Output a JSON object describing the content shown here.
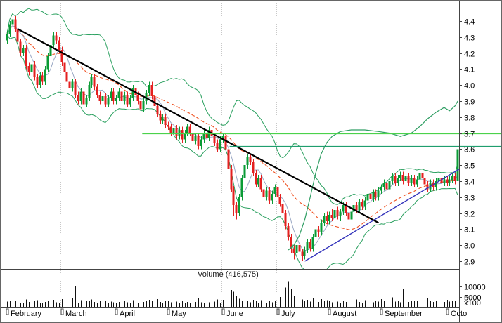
{
  "chart_data": {
    "type": "candlestick",
    "title": "",
    "volume_title": "Volume (416,575)",
    "colors": {
      "up": "#0a9b35",
      "down": "#e42020",
      "volume": "#111111",
      "grid": "#c8c8c8",
      "frame": "#666666",
      "axis": "#444444",
      "axis_text": "#000000"
    },
    "y_axis": {
      "side": "right",
      "min": 2.9,
      "max": 4.4,
      "step": 0.1,
      "tick_labels": [
        "4.4",
        "4.3",
        "4.2",
        "4.1",
        "4.0",
        "3.9",
        "3.8",
        "3.7",
        "3.6",
        "3.5",
        "3.4",
        "3.3",
        "3.2",
        "3.1",
        "3.0",
        "2.9"
      ]
    },
    "volume_axis": {
      "ticks": [
        {
          "label": "10000",
          "value": 10000
        },
        {
          "label": "5000",
          "value": 5000
        }
      ],
      "unit_label": "x100"
    },
    "x_axis": {
      "months": [
        {
          "label": "February",
          "start_index": 0
        },
        {
          "label": "March",
          "start_index": 20
        },
        {
          "label": "April",
          "start_index": 40
        },
        {
          "label": "May",
          "start_index": 59
        },
        {
          "label": "June",
          "start_index": 79
        },
        {
          "label": "July",
          "start_index": 99
        },
        {
          "label": "August",
          "start_index": 118
        },
        {
          "label": "September",
          "start_index": 137
        },
        {
          "label": "Octo",
          "start_index": 161
        }
      ]
    },
    "candles": [
      [
        4.28,
        4.34,
        4.26,
        4.32
      ],
      [
        4.32,
        4.4,
        4.3,
        4.38
      ],
      [
        4.38,
        4.43,
        4.36,
        4.41
      ],
      [
        4.41,
        4.43,
        4.33,
        4.35
      ],
      [
        4.35,
        4.37,
        4.25,
        4.27
      ],
      [
        4.27,
        4.29,
        4.18,
        4.2
      ],
      [
        4.2,
        4.25,
        4.18,
        4.23
      ],
      [
        4.23,
        4.25,
        4.1,
        4.12
      ],
      [
        4.12,
        4.14,
        4.06,
        4.08
      ],
      [
        4.08,
        4.15,
        4.06,
        4.13
      ],
      [
        4.13,
        4.15,
        4.03,
        4.05
      ],
      [
        4.05,
        4.07,
        3.98,
        4.0
      ],
      [
        4.0,
        4.08,
        3.98,
        4.06
      ],
      [
        4.06,
        4.08,
        4.0,
        4.02
      ],
      [
        4.02,
        4.12,
        4.0,
        4.1
      ],
      [
        4.1,
        4.2,
        4.08,
        4.18
      ],
      [
        4.18,
        4.27,
        4.16,
        4.25
      ],
      [
        4.25,
        4.33,
        4.23,
        4.31
      ],
      [
        4.31,
        4.33,
        4.26,
        4.28
      ],
      [
        4.28,
        4.3,
        4.2,
        4.22
      ],
      [
        4.22,
        4.24,
        4.12,
        4.14
      ],
      [
        4.14,
        4.16,
        4.06,
        4.08
      ],
      [
        4.08,
        4.1,
        4.0,
        4.02
      ],
      [
        4.02,
        4.04,
        3.96,
        3.98
      ],
      [
        3.98,
        4.04,
        3.96,
        4.02
      ],
      [
        4.02,
        4.04,
        3.92,
        3.94
      ],
      [
        3.94,
        3.96,
        3.88,
        3.9
      ],
      [
        3.9,
        3.98,
        3.88,
        3.96
      ],
      [
        3.96,
        3.98,
        3.86,
        3.88
      ],
      [
        3.88,
        3.94,
        3.86,
        3.92
      ],
      [
        3.92,
        4.02,
        3.9,
        4.0
      ],
      [
        4.0,
        4.07,
        3.98,
        4.05
      ],
      [
        4.05,
        4.07,
        3.97,
        3.99
      ],
      [
        3.99,
        4.01,
        3.92,
        3.94
      ],
      [
        3.94,
        3.96,
        3.88,
        3.9
      ],
      [
        3.9,
        3.95,
        3.88,
        3.93
      ],
      [
        3.93,
        3.95,
        3.86,
        3.88
      ],
      [
        3.88,
        3.94,
        3.86,
        3.92
      ],
      [
        3.92,
        3.98,
        3.9,
        3.96
      ],
      [
        3.96,
        3.98,
        3.88,
        3.9
      ],
      [
        3.9,
        3.94,
        3.88,
        3.92
      ],
      [
        3.92,
        3.98,
        3.9,
        3.96
      ],
      [
        3.96,
        3.98,
        3.88,
        3.9
      ],
      [
        3.9,
        3.96,
        3.88,
        3.94
      ],
      [
        3.94,
        3.96,
        3.86,
        3.88
      ],
      [
        3.88,
        3.94,
        3.86,
        3.92
      ],
      [
        3.92,
        4.0,
        3.9,
        3.98
      ],
      [
        3.98,
        4.0,
        3.92,
        3.94
      ],
      [
        3.94,
        3.96,
        3.88,
        3.9
      ],
      [
        3.9,
        3.92,
        3.83,
        3.85
      ],
      [
        3.85,
        3.92,
        3.83,
        3.9
      ],
      [
        3.9,
        3.97,
        3.88,
        3.95
      ],
      [
        3.95,
        4.02,
        3.93,
        4.0
      ],
      [
        4.0,
        4.02,
        3.91,
        3.93
      ],
      [
        3.93,
        3.95,
        3.85,
        3.87
      ],
      [
        3.87,
        3.89,
        3.8,
        3.82
      ],
      [
        3.82,
        3.84,
        3.76,
        3.78
      ],
      [
        3.78,
        3.82,
        3.76,
        3.8
      ],
      [
        3.8,
        3.82,
        3.73,
        3.75
      ],
      [
        3.75,
        3.77,
        3.72,
        3.74
      ],
      [
        3.74,
        3.76,
        3.68,
        3.7
      ],
      [
        3.7,
        3.75,
        3.68,
        3.73
      ],
      [
        3.73,
        3.75,
        3.66,
        3.68
      ],
      [
        3.68,
        3.74,
        3.66,
        3.72
      ],
      [
        3.72,
        3.74,
        3.64,
        3.66
      ],
      [
        3.66,
        3.72,
        3.64,
        3.7
      ],
      [
        3.7,
        3.76,
        3.68,
        3.74
      ],
      [
        3.74,
        3.76,
        3.68,
        3.7
      ],
      [
        3.7,
        3.72,
        3.63,
        3.65
      ],
      [
        3.65,
        3.7,
        3.63,
        3.68
      ],
      [
        3.68,
        3.7,
        3.6,
        3.62
      ],
      [
        3.62,
        3.68,
        3.6,
        3.66
      ],
      [
        3.66,
        3.72,
        3.64,
        3.7
      ],
      [
        3.7,
        3.72,
        3.65,
        3.67
      ],
      [
        3.67,
        3.74,
        3.65,
        3.72
      ],
      [
        3.72,
        3.74,
        3.66,
        3.68
      ],
      [
        3.68,
        3.7,
        3.62,
        3.64
      ],
      [
        3.64,
        3.66,
        3.58,
        3.6
      ],
      [
        3.6,
        3.68,
        3.58,
        3.66
      ],
      [
        3.66,
        3.7,
        3.64,
        3.68
      ],
      [
        3.68,
        3.7,
        3.58,
        3.6
      ],
      [
        3.6,
        3.62,
        3.46,
        3.48
      ],
      [
        3.48,
        3.5,
        3.33,
        3.35
      ],
      [
        3.35,
        3.37,
        3.18,
        3.25
      ],
      [
        3.25,
        3.27,
        3.16,
        3.2
      ],
      [
        3.2,
        3.32,
        3.18,
        3.3
      ],
      [
        3.3,
        3.44,
        3.28,
        3.42
      ],
      [
        3.42,
        3.52,
        3.4,
        3.5
      ],
      [
        3.5,
        3.57,
        3.48,
        3.55
      ],
      [
        3.55,
        3.57,
        3.5,
        3.52
      ],
      [
        3.52,
        3.54,
        3.43,
        3.45
      ],
      [
        3.45,
        3.47,
        3.36,
        3.38
      ],
      [
        3.38,
        3.44,
        3.36,
        3.42
      ],
      [
        3.42,
        3.44,
        3.33,
        3.35
      ],
      [
        3.35,
        3.37,
        3.28,
        3.3
      ],
      [
        3.3,
        3.36,
        3.28,
        3.34
      ],
      [
        3.34,
        3.36,
        3.26,
        3.28
      ],
      [
        3.28,
        3.34,
        3.26,
        3.32
      ],
      [
        3.32,
        3.38,
        3.3,
        3.36
      ],
      [
        3.36,
        3.38,
        3.28,
        3.3
      ],
      [
        3.3,
        3.32,
        3.24,
        3.26
      ],
      [
        3.26,
        3.28,
        3.18,
        3.2
      ],
      [
        3.2,
        3.22,
        3.1,
        3.12
      ],
      [
        3.12,
        3.14,
        3.03,
        3.05
      ],
      [
        3.05,
        3.07,
        2.95,
        2.98
      ],
      [
        2.98,
        3.0,
        2.91,
        2.95
      ],
      [
        2.95,
        3.02,
        2.93,
        3.0
      ],
      [
        3.0,
        3.02,
        2.93,
        2.96
      ],
      [
        2.96,
        2.98,
        2.9,
        2.93
      ],
      [
        2.93,
        2.99,
        2.91,
        2.97
      ],
      [
        2.97,
        3.04,
        2.95,
        3.02
      ],
      [
        3.02,
        3.04,
        2.96,
        2.98
      ],
      [
        2.98,
        3.07,
        2.96,
        3.05
      ],
      [
        3.05,
        3.12,
        3.03,
        3.1
      ],
      [
        3.1,
        3.12,
        3.05,
        3.08
      ],
      [
        3.08,
        3.16,
        3.06,
        3.14
      ],
      [
        3.14,
        3.2,
        3.12,
        3.18
      ],
      [
        3.18,
        3.21,
        3.13,
        3.15
      ],
      [
        3.15,
        3.21,
        3.13,
        3.19
      ],
      [
        3.19,
        3.23,
        3.15,
        3.17
      ],
      [
        3.17,
        3.24,
        3.15,
        3.22
      ],
      [
        3.22,
        3.24,
        3.16,
        3.18
      ],
      [
        3.18,
        3.23,
        3.15,
        3.21
      ],
      [
        3.21,
        3.27,
        3.19,
        3.25
      ],
      [
        3.25,
        3.27,
        3.18,
        3.2
      ],
      [
        3.2,
        3.22,
        3.14,
        3.16
      ],
      [
        3.16,
        3.23,
        3.14,
        3.21
      ],
      [
        3.21,
        3.27,
        3.19,
        3.25
      ],
      [
        3.25,
        3.27,
        3.2,
        3.22
      ],
      [
        3.22,
        3.29,
        3.2,
        3.27
      ],
      [
        3.27,
        3.29,
        3.22,
        3.24
      ],
      [
        3.24,
        3.3,
        3.22,
        3.28
      ],
      [
        3.28,
        3.34,
        3.26,
        3.32
      ],
      [
        3.32,
        3.34,
        3.27,
        3.29
      ],
      [
        3.29,
        3.35,
        3.27,
        3.33
      ],
      [
        3.33,
        3.35,
        3.28,
        3.3
      ],
      [
        3.3,
        3.36,
        3.28,
        3.34
      ],
      [
        3.34,
        3.38,
        3.32,
        3.36
      ],
      [
        3.36,
        3.41,
        3.34,
        3.39
      ],
      [
        3.39,
        3.41,
        3.33,
        3.35
      ],
      [
        3.35,
        3.42,
        3.33,
        3.4
      ],
      [
        3.4,
        3.45,
        3.38,
        3.43
      ],
      [
        3.43,
        3.45,
        3.37,
        3.39
      ],
      [
        3.39,
        3.44,
        3.37,
        3.42
      ],
      [
        3.42,
        3.46,
        3.4,
        3.44
      ],
      [
        3.44,
        3.46,
        3.38,
        3.4
      ],
      [
        3.4,
        3.45,
        3.38,
        3.43
      ],
      [
        3.43,
        3.45,
        3.37,
        3.39
      ],
      [
        3.39,
        3.44,
        3.37,
        3.42
      ],
      [
        3.42,
        3.44,
        3.36,
        3.38
      ],
      [
        3.38,
        3.43,
        3.36,
        3.41
      ],
      [
        3.41,
        3.47,
        3.39,
        3.45
      ],
      [
        3.45,
        3.47,
        3.4,
        3.42
      ],
      [
        3.42,
        3.44,
        3.36,
        3.38
      ],
      [
        3.38,
        3.4,
        3.33,
        3.35
      ],
      [
        3.35,
        3.41,
        3.33,
        3.39
      ],
      [
        3.39,
        3.41,
        3.34,
        3.36
      ],
      [
        3.36,
        3.42,
        3.34,
        3.4
      ],
      [
        3.4,
        3.44,
        3.38,
        3.42
      ],
      [
        3.42,
        3.44,
        3.37,
        3.39
      ],
      [
        3.39,
        3.43,
        3.37,
        3.41
      ],
      [
        3.41,
        3.43,
        3.37,
        3.39
      ],
      [
        3.39,
        3.43,
        3.37,
        3.41
      ],
      [
        3.41,
        3.45,
        3.39,
        3.43
      ],
      [
        3.43,
        3.45,
        3.38,
        3.4
      ],
      [
        3.4,
        3.62,
        3.38,
        3.6
      ]
    ],
    "volumes": [
      2600,
      3100,
      5200,
      2800,
      2300,
      1900,
      2100,
      3600,
      2400,
      1800,
      2900,
      3300,
      2000,
      1700,
      2500,
      3000,
      2700,
      3400,
      2200,
      1900,
      3800,
      2600,
      3100,
      2200,
      4400,
      10400,
      1900,
      3300,
      2100,
      2800,
      2700,
      3600,
      2400,
      1900,
      2900,
      2300,
      3100,
      1800,
      2600,
      2200,
      2100,
      2500,
      1900,
      2800,
      2300,
      1700,
      3200,
      2600,
      2000,
      4800,
      2400,
      2900,
      3500,
      2700,
      2100,
      3800,
      2500,
      1900,
      3000,
      3000,
      2300,
      1800,
      2600,
      2100,
      2900,
      1700,
      2400,
      2000,
      3300,
      2500,
      4100,
      2200,
      1800,
      2700,
      2300,
      3100,
      2600,
      3600,
      2100,
      3400,
      4200,
      6800,
      8200,
      7400,
      5600,
      3900,
      3100,
      4600,
      2800,
      2300,
      3500,
      2700,
      2100,
      3200,
      2600,
      1900,
      2800,
      2300,
      3000,
      3600,
      4800,
      7200,
      9400,
      12600,
      8800,
      5400,
      4100,
      6200,
      3700,
      2900,
      3400,
      2600,
      4400,
      3100,
      2500,
      3800,
      2700,
      3300,
      2800,
      2200,
      3400,
      2600,
      1900,
      3100,
      2500,
      7400,
      2300,
      2900,
      3700,
      2400,
      2000,
      3200,
      2700,
      4600,
      2300,
      3000,
      2600,
      3800,
      2900,
      2400,
      3300,
      4700,
      2600,
      3100,
      2200,
      9000,
      3600,
      2400,
      3000,
      2800,
      2700,
      2300,
      3500,
      2600,
      4100,
      2900,
      2400,
      3100,
      2700,
      6300,
      2500,
      3500,
      2600,
      2900,
      3100,
      4166
    ],
    "overlays": {
      "sma_fast": {
        "period": 6,
        "color": "#9aa8c4"
      },
      "sma_slow": {
        "period": 25,
        "color": "#ef4e1d",
        "dashed": true
      },
      "bollinger": {
        "period": 20,
        "mult": 2,
        "color": "#2aa05f"
      }
    },
    "trendlines": [
      {
        "name": "downtrend",
        "color": "#000000",
        "width": 2.2,
        "from": {
          "i": 4,
          "p": 4.35
        },
        "to": {
          "i": 136,
          "p": 3.14
        }
      },
      {
        "name": "uptrend",
        "color": "#3333bb",
        "width": 1.4,
        "from": {
          "i": 109,
          "p": 2.9
        },
        "to": {
          "i": 166,
          "p": 3.48
        }
      }
    ],
    "levels": [
      {
        "name": "resistance-upper",
        "price": 3.7,
        "from_index": 50,
        "color": "#4bd24b"
      },
      {
        "name": "resistance-lower",
        "price": 3.62,
        "from_index": 82,
        "color": "#1f9e6e"
      }
    ],
    "aux_curve": {
      "name": "recovery-trend-curve",
      "color": "#2f9e63",
      "points": [
        [
          103,
          2.97
        ],
        [
          105,
          3.0
        ],
        [
          107,
          3.06
        ],
        [
          109,
          3.16
        ],
        [
          111,
          3.3
        ],
        [
          113,
          3.45
        ],
        [
          115,
          3.57
        ],
        [
          117,
          3.64
        ],
        [
          119,
          3.68
        ],
        [
          122,
          3.71
        ],
        [
          126,
          3.72
        ],
        [
          131,
          3.72
        ],
        [
          136,
          3.71
        ],
        [
          140,
          3.7
        ],
        [
          144,
          3.68
        ],
        [
          148,
          3.7
        ],
        [
          151,
          3.74
        ],
        [
          154,
          3.79
        ],
        [
          157,
          3.83
        ],
        [
          160,
          3.86
        ],
        [
          162,
          3.84
        ],
        [
          164,
          3.87
        ],
        [
          165,
          3.9
        ]
      ]
    }
  }
}
